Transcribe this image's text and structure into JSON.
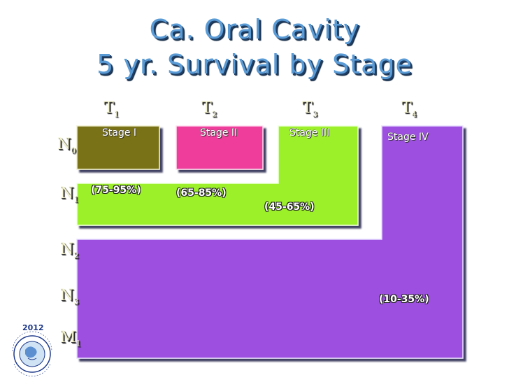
{
  "title": {
    "line1": "Ca. Oral Cavity",
    "line2": "5 yr. Survival by Stage"
  },
  "t_headers": [
    {
      "base": "T",
      "sub": "1"
    },
    {
      "base": "T",
      "sub": "2"
    },
    {
      "base": "T",
      "sub": "3"
    },
    {
      "base": "T",
      "sub": "4"
    }
  ],
  "n_headers": [
    {
      "base": "N",
      "sub": "0"
    },
    {
      "base": "N",
      "sub": "1"
    },
    {
      "base": "N",
      "sub": "2"
    },
    {
      "base": "N",
      "sub": "3"
    },
    {
      "base": "M",
      "sub": "1"
    }
  ],
  "stages": [
    {
      "label": "Stage I",
      "survival": "(75-95%)",
      "color": "#7a7214"
    },
    {
      "label": "Stage II",
      "survival": "(65-85%)",
      "color": "#ee3d9b"
    },
    {
      "label": "Stage III",
      "survival": "(45-65%)",
      "color": "#9cf02a"
    },
    {
      "label": "Stage IV",
      "survival": "(10-35%)",
      "color": "#9d4fe0"
    }
  ],
  "logo": {
    "year": "2012",
    "text": "International Federation of Head and Neck Oncologic Societies"
  }
}
